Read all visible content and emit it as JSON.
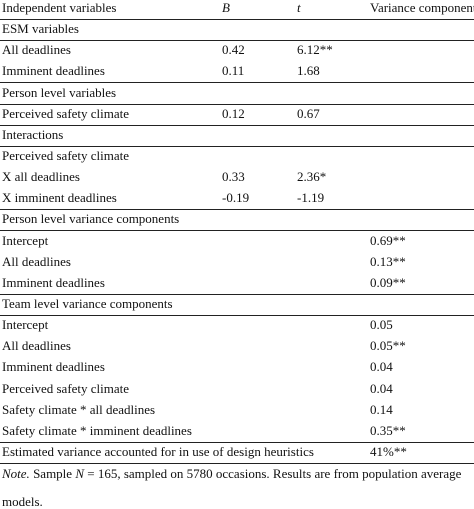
{
  "table": {
    "header": [
      "Independent variables",
      "B",
      "t",
      "Variance component"
    ],
    "sections": [
      {
        "title": "ESM variables",
        "rows": [
          {
            "label": "All deadlines",
            "B": "0.42",
            "t": "6.12**"
          },
          {
            "label": "Imminent deadlines",
            "B": "0.11",
            "t": "1.68"
          }
        ]
      },
      {
        "title": "Person level variables",
        "rows": [
          {
            "label": "Perceived safety climate",
            "B": "0.12",
            "t": "0.67"
          }
        ]
      },
      {
        "title": "Interactions",
        "rows": [
          {
            "label": "Perceived safety climate"
          },
          {
            "label": "X all deadlines",
            "B": "0.33",
            "t": "2.36*"
          },
          {
            "label": "X imminent deadlines",
            "B": "-0.19",
            "t": "-1.19"
          }
        ]
      },
      {
        "title": "Person level variance components",
        "rows": [
          {
            "label": "Intercept",
            "variance": "0.69**"
          },
          {
            "label": "All deadlines",
            "variance": "0.13**"
          },
          {
            "label": "Imminent deadlines",
            "variance": "0.09**"
          }
        ]
      },
      {
        "title": "Team level variance components",
        "rows": [
          {
            "label": "Intercept",
            "variance": "0.05"
          },
          {
            "label": "All deadlines",
            "variance": "0.05**"
          },
          {
            "label": "Imminent deadlines",
            "variance": "0.04"
          },
          {
            "label": "Perceived safety climate",
            "variance": "0.04"
          },
          {
            "label": "Safety climate * all deadlines",
            "variance": "0.14"
          },
          {
            "label": "Safety climate * imminent deadlines",
            "variance": "0.35**"
          }
        ]
      }
    ],
    "summary": {
      "label": "Estimated variance accounted for in use of design heuristics",
      "variance": "41%**"
    }
  },
  "note": {
    "label": "Note.",
    "text_before": "Sample ",
    "n_symbol": "N",
    "text_after": " = 165, sampled on 5780 occasions. Results are from population average",
    "continuation": "models."
  }
}
